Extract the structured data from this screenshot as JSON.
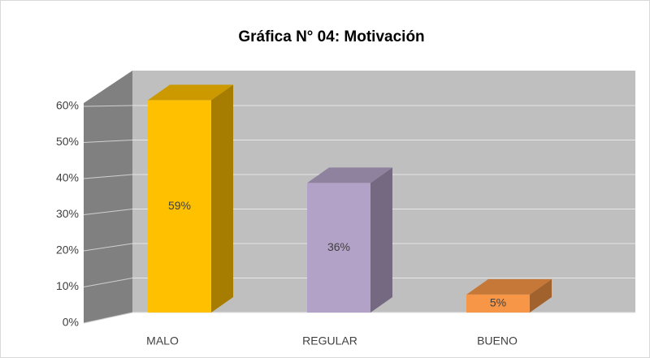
{
  "chart_data": {
    "type": "bar3d",
    "title": "Gráfica N° 04: Motivación",
    "categories": [
      "MALO",
      "REGULAR",
      "BUENO"
    ],
    "values": [
      59,
      36,
      5
    ],
    "value_labels": [
      "59%",
      "36%",
      "5%"
    ],
    "colors": [
      "#ffc000",
      "#b3a2c7",
      "#f79646"
    ],
    "ylim": [
      0,
      60
    ],
    "yticks": [
      {
        "value": 0,
        "label": "0%"
      },
      {
        "value": 10,
        "label": "10%"
      },
      {
        "value": 20,
        "label": "20%"
      },
      {
        "value": 30,
        "label": "30%"
      },
      {
        "value": 40,
        "label": "40%"
      },
      {
        "value": 50,
        "label": "50%"
      },
      {
        "value": 60,
        "label": "60%"
      }
    ],
    "grid": true
  }
}
